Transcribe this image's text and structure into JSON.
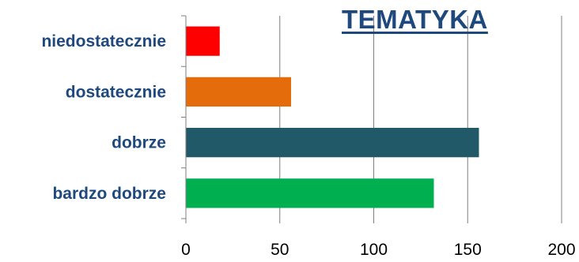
{
  "chart_data": {
    "type": "bar",
    "orientation": "horizontal",
    "title": "TEMATYKA",
    "categories": [
      "niedostatecznie",
      "dostatecznie",
      "dobrze",
      "bardzo dobrze"
    ],
    "values": [
      18,
      56,
      156,
      132
    ],
    "colors": [
      "#ff0000",
      "#e46c0a",
      "#215968",
      "#00b050"
    ],
    "xlim": [
      0,
      200
    ],
    "xticks": [
      "0",
      "50",
      "100",
      "150",
      "200"
    ],
    "xlabel": "",
    "ylabel": "",
    "grid": "vertical",
    "legend": "none",
    "label_color": "#1f497d",
    "title_color": "#1f497d",
    "grid_color": "#7f7f7f"
  }
}
